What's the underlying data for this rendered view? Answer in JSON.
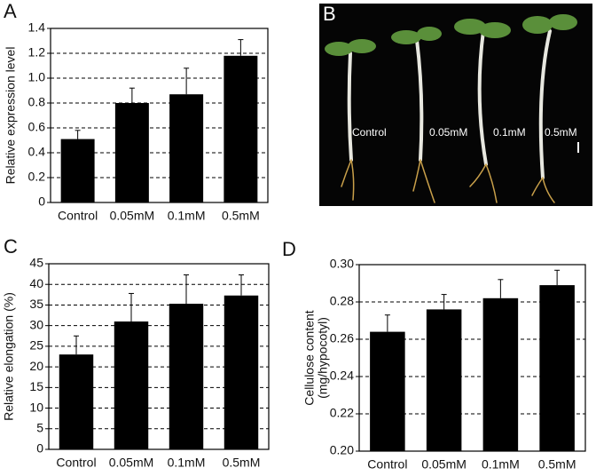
{
  "chart_data": [
    {
      "type": "bar",
      "panel": "A",
      "y_label": [
        "Relative expression level"
      ],
      "categories": [
        "Control",
        "0.05mM",
        "0.1mM",
        "0.5mM"
      ],
      "values": [
        0.51,
        0.8,
        0.87,
        1.18
      ],
      "errors": [
        0.07,
        0.12,
        0.21,
        0.13
      ],
      "color": "#000000",
      "ylim": [
        0,
        1.4
      ],
      "yticks": [
        0,
        0.2,
        0.4,
        0.6,
        0.8,
        {
          "value": 1,
          "label": "1.0"
        },
        1.2,
        1.4
      ],
      "grid": true
    },
    {
      "type": "bar",
      "panel": "C",
      "y_label": [
        "Relative elongation (%)"
      ],
      "categories": [
        "Control",
        "0.05mM",
        "0.1mM",
        "0.5mM"
      ],
      "values": [
        23,
        31,
        35.3,
        37.3
      ],
      "errors": [
        4.5,
        6.8,
        7,
        5
      ],
      "color": "#000000",
      "ylim": [
        0,
        45
      ],
      "yticks": [
        0,
        5,
        10,
        15,
        20,
        25,
        30,
        35,
        40,
        45
      ],
      "grid": true
    },
    {
      "type": "bar",
      "panel": "D",
      "y_label": [
        "Cellulose content",
        "(mg/hypocotyl)"
      ],
      "categories": [
        "Control",
        "0.05mM",
        "0.1mM",
        "0.5mM"
      ],
      "values": [
        0.264,
        0.276,
        0.282,
        0.289
      ],
      "errors": [
        0.009,
        0.008,
        0.01,
        0.008
      ],
      "color": "#000000",
      "ylim": [
        0.2,
        0.3
      ],
      "yticks": [
        {
          "value": 0.2,
          "label": "0.20"
        },
        0.22,
        0.24,
        0.26,
        0.28,
        {
          "value": 0.3,
          "label": "0.30"
        }
      ],
      "grid": true
    }
  ],
  "photo_panel": {
    "panel": "B",
    "labels": [
      "Control",
      "0.05mM",
      "0.1mM",
      "0.5mM"
    ]
  }
}
